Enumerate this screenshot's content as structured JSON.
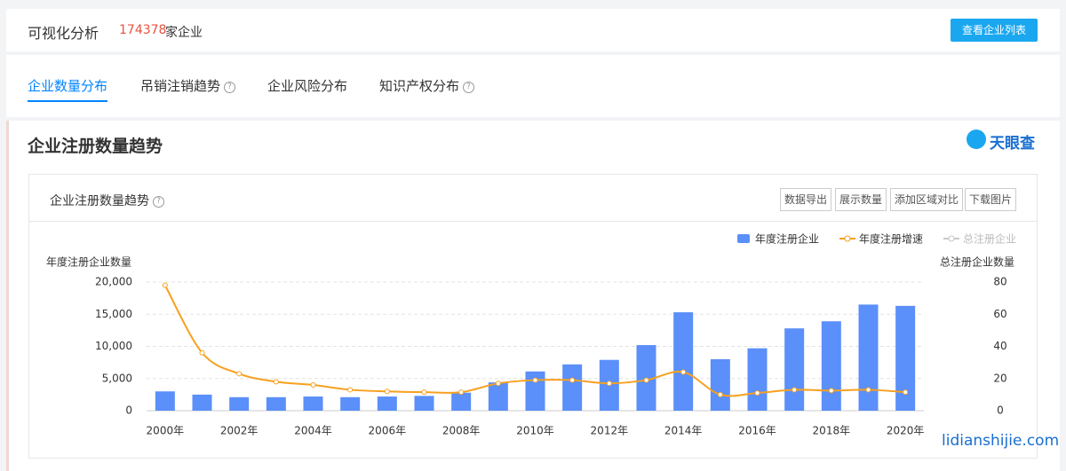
{
  "header": {
    "title": "可视化分析",
    "count": "174378",
    "count_suffix": "家企业",
    "button": "查看企业列表"
  },
  "tabs": [
    "企业数量分布",
    "吊销注销趋势",
    "企业风险分布",
    "知识产权分布"
  ],
  "section_title": "企业注册数量趋势",
  "logo": "天眼查",
  "panel": {
    "title": "企业注册数量趋势",
    "tools": [
      "数据导出",
      "展示数量",
      "添加区域对比",
      "下载图片"
    ]
  },
  "watermark": "lidianshijie.com",
  "chart_data": {
    "type": "bar_line",
    "y_label": "年度注册企业数量",
    "y2_label": "总注册企业数量",
    "categories": [
      "2000年",
      null,
      "2002年",
      null,
      "2004年",
      null,
      "2006年",
      null,
      "2008年",
      null,
      "2010年",
      null,
      "2012年",
      null,
      "2014年",
      null,
      "2016年",
      null,
      "2018年",
      null,
      "2020年"
    ],
    "series": [
      {
        "name": "年度注册企业",
        "type": "bar",
        "color": "#5b8ff9",
        "values": [
          3000,
          2500,
          2100,
          2100,
          2200,
          2100,
          2200,
          2300,
          2800,
          4400,
          6100,
          7200,
          7900,
          10200,
          15300,
          8000,
          9700,
          12800,
          13900,
          16500,
          16300
        ]
      },
      {
        "name": "年度注册增速",
        "type": "line",
        "axis": "y2",
        "color": "#f7a01e",
        "values": [
          78,
          36,
          23,
          18,
          16,
          13,
          12,
          11.5,
          11.5,
          17,
          19,
          19,
          17,
          19,
          24,
          10,
          11,
          13,
          12.5,
          13,
          11.5
        ]
      }
    ],
    "inactive_legend": {
      "name": "总注册企业",
      "color": "#c8c8c8"
    },
    "ylim": [
      0,
      20000
    ],
    "yticks": [
      0,
      {
        "value": 5000,
        "label": "5,000"
      },
      {
        "value": 10000,
        "label": "10,000"
      },
      {
        "value": 15000,
        "label": "15,000"
      },
      {
        "value": 20000,
        "label": "20,000"
      }
    ],
    "y2lim": [
      0,
      80
    ],
    "y2ticks": [
      0,
      20,
      40,
      60,
      80
    ],
    "grid": true
  }
}
